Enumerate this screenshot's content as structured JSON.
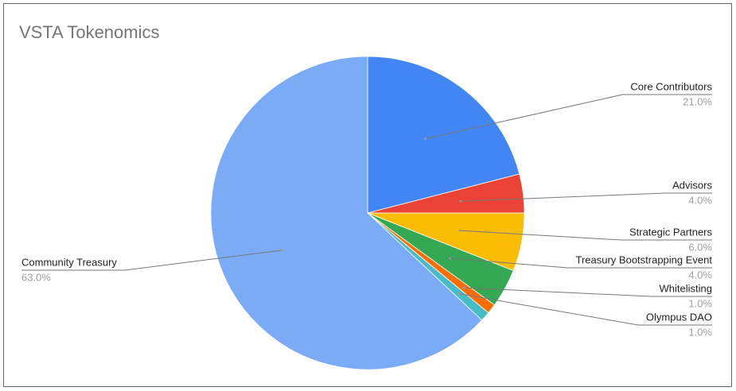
{
  "chart_data": {
    "type": "pie",
    "title": "VSTA Tokenomics",
    "categories": [
      "Core Contributors",
      "Advisors",
      "Strategic Partners",
      "Treasury Bootstrapping Event",
      "Whitelisting",
      "Olympus DAO",
      "Community Treasury"
    ],
    "values": [
      21,
      4,
      6,
      4,
      1,
      1,
      63
    ],
    "value_labels": [
      "21.0%",
      "4.0%",
      "6.0%",
      "4.0%",
      "1.0%",
      "1.0%",
      "63.0%"
    ],
    "colors": [
      "#4285f4",
      "#ea4335",
      "#fbbc04",
      "#34a853",
      "#ff6d01",
      "#46bdc6",
      "#7baaf7"
    ]
  }
}
